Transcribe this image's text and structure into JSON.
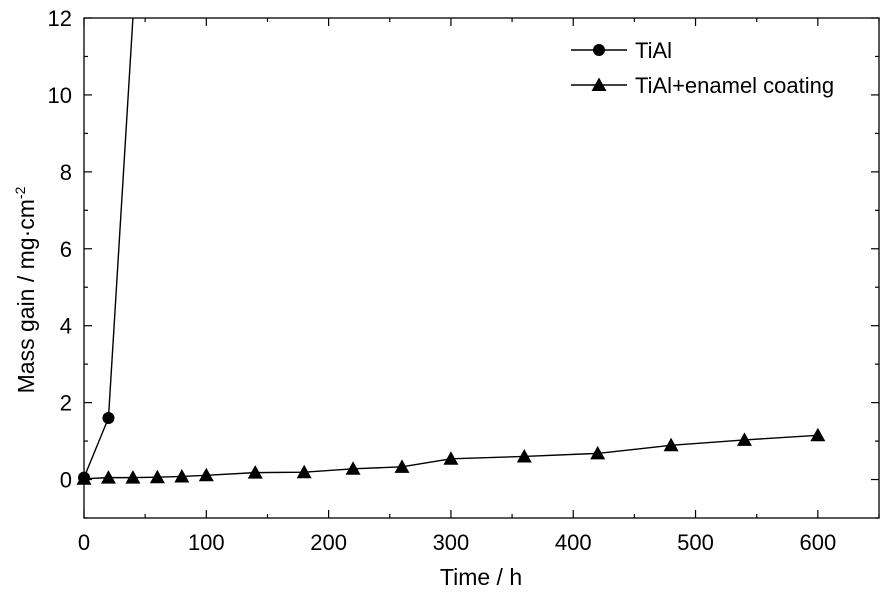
{
  "chart_data": {
    "type": "line",
    "xlabel": "Time / h",
    "ylabel": "Mass gain / mg·cm",
    "ylabel_sup": "-2",
    "xlim": [
      0,
      650
    ],
    "ylim": [
      -1,
      12
    ],
    "xticks": [
      0,
      100,
      200,
      300,
      400,
      500,
      600
    ],
    "yticks": [
      0,
      2,
      4,
      6,
      8,
      10,
      12
    ],
    "x_minor_step": 50,
    "y_minor_step": 1,
    "grid": false,
    "legend_position": "top-right",
    "series": [
      {
        "name": "TiAl",
        "marker": "circle",
        "color": "#000000",
        "x": [
          0,
          20,
          40
        ],
        "y": [
          0.05,
          1.6,
          12
        ]
      },
      {
        "name": "TiAl+enamel coating",
        "marker": "triangle",
        "color": "#000000",
        "x": [
          0,
          20,
          40,
          60,
          80,
          100,
          140,
          180,
          220,
          260,
          300,
          360,
          420,
          480,
          540,
          600
        ],
        "y": [
          0.02,
          0.05,
          0.05,
          0.06,
          0.08,
          0.11,
          0.18,
          0.19,
          0.28,
          0.33,
          0.54,
          0.6,
          0.68,
          0.89,
          1.03,
          1.15
        ]
      }
    ]
  }
}
